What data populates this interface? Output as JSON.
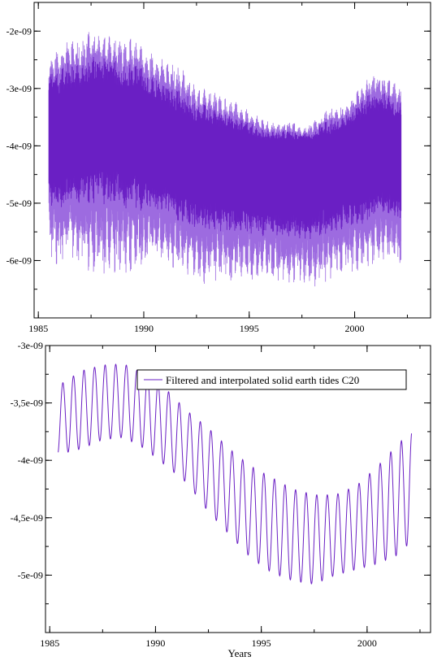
{
  "chart_data": [
    {
      "type": "line",
      "title": "",
      "xlabel": "",
      "ylabel": "",
      "xlim": [
        1984.8,
        2003.6
      ],
      "ylim": [
        -7e-09,
        -1.5e-09
      ],
      "xticks": [
        1985,
        1990,
        1995,
        2000
      ],
      "xtick_labels": [
        "1985",
        "1990",
        "1995",
        "2000"
      ],
      "yticks": [
        -2e-09,
        -3e-09,
        -4e-09,
        -5e-09,
        -6e-09
      ],
      "ytick_labels": [
        "-2e-09",
        "-3e-09",
        "-4e-09",
        "-5e-09",
        "-6e-09"
      ],
      "grid": false,
      "colors": {
        "dark": "#6a1fc4",
        "light": "#9d6be0"
      },
      "series": [
        {
          "x": [
            1985.5,
            1986.0,
            1986.5,
            1987.0,
            1987.5,
            1988.0,
            1988.5,
            1989.0,
            1989.5,
            1990.0,
            1990.5,
            1991.0,
            1991.5,
            1992.0,
            1992.5,
            1993.0,
            1993.5,
            1994.0,
            1994.5,
            1995.0,
            1995.5,
            1996.0,
            1996.5,
            1997.0,
            1997.5,
            1998.0,
            1998.5,
            1999.0,
            1999.5,
            2000.0,
            2000.5,
            2001.0,
            2001.5,
            2002.0,
            2002.2
          ],
          "upper": [
            -2.4e-09,
            -2.3e-09,
            -2.1e-09,
            -2.2e-09,
            -1.95e-09,
            -2.1e-09,
            -2.05e-09,
            -2.2e-09,
            -2.1e-09,
            -2.3e-09,
            -2.4e-09,
            -2.5e-09,
            -2.6e-09,
            -2.7e-09,
            -3e-09,
            -3e-09,
            -3.1e-09,
            -3.2e-09,
            -3.25e-09,
            -3.4e-09,
            -3.5e-09,
            -3.6e-09,
            -3.6e-09,
            -3.55e-09,
            -3.7e-09,
            -3.6e-09,
            -3.4e-09,
            -3.3e-09,
            -3.3e-09,
            -3.1e-09,
            -2.8e-09,
            -2.7e-09,
            -2.8e-09,
            -2.9e-09,
            -3e-09
          ],
          "core_high": [
            -3.1e-09,
            -3.1e-09,
            -3e-09,
            -3e-09,
            -2.9e-09,
            -2.9e-09,
            -2.9e-09,
            -3e-09,
            -3e-09,
            -3.1e-09,
            -3.2e-09,
            -3.3e-09,
            -3.4e-09,
            -3.5e-09,
            -3.6e-09,
            -3.6e-09,
            -3.7e-09,
            -3.7e-09,
            -3.8e-09,
            -3.8e-09,
            -3.9e-09,
            -3.9e-09,
            -3.9e-09,
            -3.9e-09,
            -3.9e-09,
            -3.9e-09,
            -3.8e-09,
            -3.8e-09,
            -3.7e-09,
            -3.6e-09,
            -3.5e-09,
            -3.4e-09,
            -3.4e-09,
            -3.5e-09,
            -3.5e-09
          ],
          "core_low": [
            -4.6e-09,
            -4.6e-09,
            -4.5e-09,
            -4.5e-09,
            -4.4e-09,
            -4.4e-09,
            -4.4e-09,
            -4.5e-09,
            -4.5e-09,
            -4.6e-09,
            -4.7e-09,
            -4.7e-09,
            -4.8e-09,
            -4.9e-09,
            -5e-09,
            -5e-09,
            -5e-09,
            -5.1e-09,
            -5.1e-09,
            -5.1e-09,
            -5.2e-09,
            -5.2e-09,
            -5.2e-09,
            -5.2e-09,
            -5.2e-09,
            -5.2e-09,
            -5.1e-09,
            -5.1e-09,
            -5e-09,
            -5e-09,
            -4.9e-09,
            -4.8e-09,
            -4.8e-09,
            -4.9e-09,
            -4.9e-09
          ],
          "lower": [
            -5.9e-09,
            -6.2e-09,
            -6e-09,
            -6.1e-09,
            -6.2e-09,
            -6.3e-09,
            -6.4e-09,
            -6.3e-09,
            -6.2e-09,
            -6.2e-09,
            -6e-09,
            -6.1e-09,
            -6.2e-09,
            -6.3e-09,
            -6.4e-09,
            -6.45e-09,
            -6.4e-09,
            -6.4e-09,
            -6.35e-09,
            -6.4e-09,
            -6.3e-09,
            -6.3e-09,
            -6.4e-09,
            -6.45e-09,
            -6.4e-09,
            -6.5e-09,
            -6.4e-09,
            -6.3e-09,
            -6.3e-09,
            -6.2e-09,
            -6.2e-09,
            -6.1e-09,
            -6e-09,
            -6.2e-09,
            -6.3e-09
          ]
        }
      ]
    },
    {
      "type": "line",
      "title": "",
      "xlabel": "Years",
      "ylabel": "",
      "xlim": [
        1984.8,
        2003.0
      ],
      "ylim": [
        -5.5e-09,
        -3e-09
      ],
      "xticks": [
        1985,
        1990,
        1995,
        2000
      ],
      "xtick_labels": [
        "1985",
        "1990",
        "1995",
        "2000"
      ],
      "yticks": [
        -3e-09,
        -3.5e-09,
        -4e-09,
        -4.5e-09,
        -5e-09
      ],
      "ytick_labels": [
        "-3e-09",
        "-3,5e-09",
        "-4e-09",
        "-4,5e-09",
        "-5e-09"
      ],
      "grid": false,
      "legend_position": "top-right",
      "colors": {
        "line": "#6a1fc4"
      },
      "series": [
        {
          "name": "Filtered and interpolated solid earth tides C20",
          "x_start": 1985.4,
          "x_end": 2002.1,
          "cycle_years": 0.5,
          "envelope_x": [
            1985.4,
            1986.5,
            1987.5,
            1988.5,
            1989.5,
            1990.5,
            1991.5,
            1992.5,
            1993.5,
            1994.5,
            1995.5,
            1996.5,
            1997.5,
            1998.5,
            1999.5,
            2000.5,
            2001.5,
            2002.1
          ],
          "peak": [
            -3.35e-09,
            -3.22e-09,
            -3.17e-09,
            -3.16e-09,
            -3.25e-09,
            -3.38e-09,
            -3.57e-09,
            -3.72e-09,
            -3.9e-09,
            -4.05e-09,
            -4.15e-09,
            -4.25e-09,
            -4.3e-09,
            -4.3e-09,
            -4.22e-09,
            -4.05e-09,
            -3.85e-09,
            -3.75e-09
          ],
          "trough": [
            -3.95e-09,
            -3.9e-09,
            -3.82e-09,
            -3.8e-09,
            -3.9e-09,
            -4.05e-09,
            -4.2e-09,
            -4.45e-09,
            -4.65e-09,
            -4.85e-09,
            -4.98e-09,
            -5.05e-09,
            -5.08e-09,
            -5e-09,
            -4.95e-09,
            -4.9e-09,
            -4.82e-09,
            -4.7e-09
          ]
        }
      ]
    }
  ]
}
